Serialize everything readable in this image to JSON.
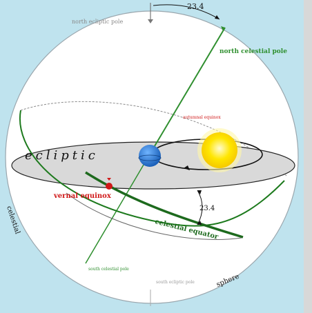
{
  "colors": {
    "sky": "#bfe3ee",
    "sphere_fill": "#ffffff",
    "ecliptic_plane": "#d9d9d9",
    "celestial_axis": "#2f8f2f",
    "equinox_red": "#d01818",
    "sun": "#ffe600",
    "earth": "#2a7fd6",
    "text_dark": "#111111",
    "right_strip": "#d8d8d8"
  },
  "labels": {
    "angle_top": "23.4",
    "north_ecliptic_pole": "north ecliptic pole",
    "north_celestial_pole": "north celestial pole",
    "autumnal_equinox": "autumnal equinox",
    "ecliptic": "ecliptic",
    "vernal_equinox": "vernal equinox",
    "angle_equator": "23.4",
    "celestial_equator": "celestial equator",
    "celestial": "celestial",
    "south_celestial_pole": "south celestial pole",
    "south_ecliptic_pole": "south ecliptic pole",
    "sphere": "sphere"
  },
  "icons": {
    "sun": "sun-icon",
    "earth": "earth-icon",
    "pole_marker": "pole-marker-icon"
  }
}
